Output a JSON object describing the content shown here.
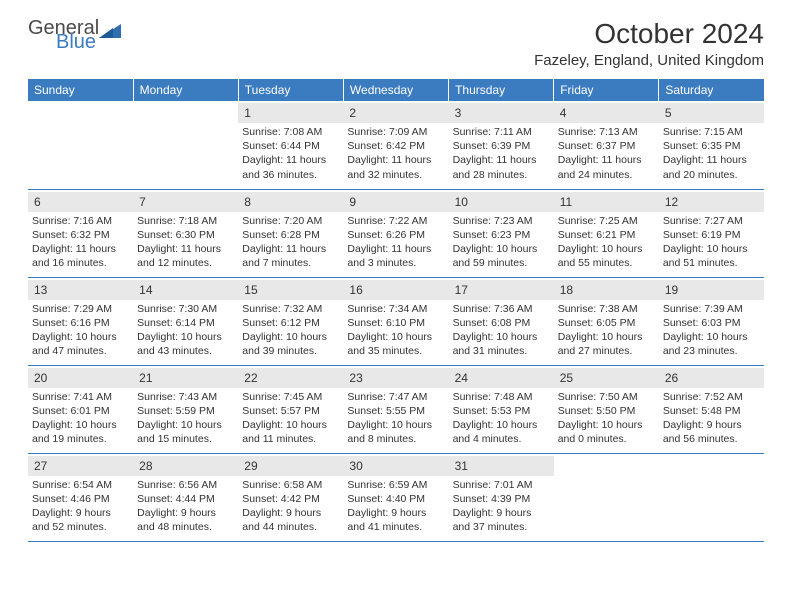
{
  "logo": {
    "text_general": "General",
    "text_blue": "Blue",
    "shape_color": "#2f6fb0"
  },
  "title": "October 2024",
  "location": "Fazeley, England, United Kingdom",
  "colors": {
    "header_bg": "#3b7bbf",
    "header_text": "#ffffff",
    "daynum_bg": "#e8e8e8",
    "border": "#3b7bbf",
    "text": "#333333"
  },
  "day_headers": [
    "Sunday",
    "Monday",
    "Tuesday",
    "Wednesday",
    "Thursday",
    "Friday",
    "Saturday"
  ],
  "weeks": [
    [
      {
        "day": "",
        "sunrise": "",
        "sunset": "",
        "daylight": ""
      },
      {
        "day": "",
        "sunrise": "",
        "sunset": "",
        "daylight": ""
      },
      {
        "day": "1",
        "sunrise": "Sunrise: 7:08 AM",
        "sunset": "Sunset: 6:44 PM",
        "daylight": "Daylight: 11 hours and 36 minutes."
      },
      {
        "day": "2",
        "sunrise": "Sunrise: 7:09 AM",
        "sunset": "Sunset: 6:42 PM",
        "daylight": "Daylight: 11 hours and 32 minutes."
      },
      {
        "day": "3",
        "sunrise": "Sunrise: 7:11 AM",
        "sunset": "Sunset: 6:39 PM",
        "daylight": "Daylight: 11 hours and 28 minutes."
      },
      {
        "day": "4",
        "sunrise": "Sunrise: 7:13 AM",
        "sunset": "Sunset: 6:37 PM",
        "daylight": "Daylight: 11 hours and 24 minutes."
      },
      {
        "day": "5",
        "sunrise": "Sunrise: 7:15 AM",
        "sunset": "Sunset: 6:35 PM",
        "daylight": "Daylight: 11 hours and 20 minutes."
      }
    ],
    [
      {
        "day": "6",
        "sunrise": "Sunrise: 7:16 AM",
        "sunset": "Sunset: 6:32 PM",
        "daylight": "Daylight: 11 hours and 16 minutes."
      },
      {
        "day": "7",
        "sunrise": "Sunrise: 7:18 AM",
        "sunset": "Sunset: 6:30 PM",
        "daylight": "Daylight: 11 hours and 12 minutes."
      },
      {
        "day": "8",
        "sunrise": "Sunrise: 7:20 AM",
        "sunset": "Sunset: 6:28 PM",
        "daylight": "Daylight: 11 hours and 7 minutes."
      },
      {
        "day": "9",
        "sunrise": "Sunrise: 7:22 AM",
        "sunset": "Sunset: 6:26 PM",
        "daylight": "Daylight: 11 hours and 3 minutes."
      },
      {
        "day": "10",
        "sunrise": "Sunrise: 7:23 AM",
        "sunset": "Sunset: 6:23 PM",
        "daylight": "Daylight: 10 hours and 59 minutes."
      },
      {
        "day": "11",
        "sunrise": "Sunrise: 7:25 AM",
        "sunset": "Sunset: 6:21 PM",
        "daylight": "Daylight: 10 hours and 55 minutes."
      },
      {
        "day": "12",
        "sunrise": "Sunrise: 7:27 AM",
        "sunset": "Sunset: 6:19 PM",
        "daylight": "Daylight: 10 hours and 51 minutes."
      }
    ],
    [
      {
        "day": "13",
        "sunrise": "Sunrise: 7:29 AM",
        "sunset": "Sunset: 6:16 PM",
        "daylight": "Daylight: 10 hours and 47 minutes."
      },
      {
        "day": "14",
        "sunrise": "Sunrise: 7:30 AM",
        "sunset": "Sunset: 6:14 PM",
        "daylight": "Daylight: 10 hours and 43 minutes."
      },
      {
        "day": "15",
        "sunrise": "Sunrise: 7:32 AM",
        "sunset": "Sunset: 6:12 PM",
        "daylight": "Daylight: 10 hours and 39 minutes."
      },
      {
        "day": "16",
        "sunrise": "Sunrise: 7:34 AM",
        "sunset": "Sunset: 6:10 PM",
        "daylight": "Daylight: 10 hours and 35 minutes."
      },
      {
        "day": "17",
        "sunrise": "Sunrise: 7:36 AM",
        "sunset": "Sunset: 6:08 PM",
        "daylight": "Daylight: 10 hours and 31 minutes."
      },
      {
        "day": "18",
        "sunrise": "Sunrise: 7:38 AM",
        "sunset": "Sunset: 6:05 PM",
        "daylight": "Daylight: 10 hours and 27 minutes."
      },
      {
        "day": "19",
        "sunrise": "Sunrise: 7:39 AM",
        "sunset": "Sunset: 6:03 PM",
        "daylight": "Daylight: 10 hours and 23 minutes."
      }
    ],
    [
      {
        "day": "20",
        "sunrise": "Sunrise: 7:41 AM",
        "sunset": "Sunset: 6:01 PM",
        "daylight": "Daylight: 10 hours and 19 minutes."
      },
      {
        "day": "21",
        "sunrise": "Sunrise: 7:43 AM",
        "sunset": "Sunset: 5:59 PM",
        "daylight": "Daylight: 10 hours and 15 minutes."
      },
      {
        "day": "22",
        "sunrise": "Sunrise: 7:45 AM",
        "sunset": "Sunset: 5:57 PM",
        "daylight": "Daylight: 10 hours and 11 minutes."
      },
      {
        "day": "23",
        "sunrise": "Sunrise: 7:47 AM",
        "sunset": "Sunset: 5:55 PM",
        "daylight": "Daylight: 10 hours and 8 minutes."
      },
      {
        "day": "24",
        "sunrise": "Sunrise: 7:48 AM",
        "sunset": "Sunset: 5:53 PM",
        "daylight": "Daylight: 10 hours and 4 minutes."
      },
      {
        "day": "25",
        "sunrise": "Sunrise: 7:50 AM",
        "sunset": "Sunset: 5:50 PM",
        "daylight": "Daylight: 10 hours and 0 minutes."
      },
      {
        "day": "26",
        "sunrise": "Sunrise: 7:52 AM",
        "sunset": "Sunset: 5:48 PM",
        "daylight": "Daylight: 9 hours and 56 minutes."
      }
    ],
    [
      {
        "day": "27",
        "sunrise": "Sunrise: 6:54 AM",
        "sunset": "Sunset: 4:46 PM",
        "daylight": "Daylight: 9 hours and 52 minutes."
      },
      {
        "day": "28",
        "sunrise": "Sunrise: 6:56 AM",
        "sunset": "Sunset: 4:44 PM",
        "daylight": "Daylight: 9 hours and 48 minutes."
      },
      {
        "day": "29",
        "sunrise": "Sunrise: 6:58 AM",
        "sunset": "Sunset: 4:42 PM",
        "daylight": "Daylight: 9 hours and 44 minutes."
      },
      {
        "day": "30",
        "sunrise": "Sunrise: 6:59 AM",
        "sunset": "Sunset: 4:40 PM",
        "daylight": "Daylight: 9 hours and 41 minutes."
      },
      {
        "day": "31",
        "sunrise": "Sunrise: 7:01 AM",
        "sunset": "Sunset: 4:39 PM",
        "daylight": "Daylight: 9 hours and 37 minutes."
      },
      {
        "day": "",
        "sunrise": "",
        "sunset": "",
        "daylight": ""
      },
      {
        "day": "",
        "sunrise": "",
        "sunset": "",
        "daylight": ""
      }
    ]
  ]
}
